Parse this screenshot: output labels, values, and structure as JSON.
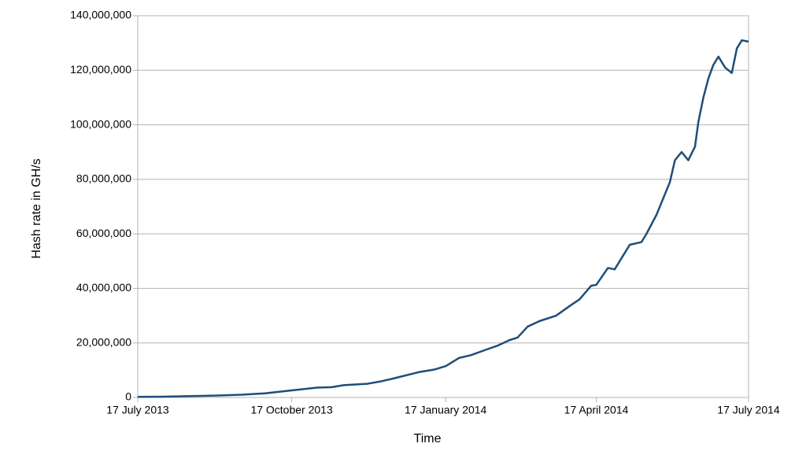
{
  "chart_data": {
    "type": "line",
    "x_label": "Time",
    "y_label": "Hash rate in GH/s",
    "xlim": [
      "2013-07-17",
      "2014-07-17"
    ],
    "xticks": [
      {
        "value": "2013-07-17",
        "label": "17 July 2013"
      },
      {
        "value": "2013-10-17",
        "label": "17 October 2013"
      },
      {
        "value": "2014-01-17",
        "label": "17 January 2014"
      },
      {
        "value": "2014-04-17",
        "label": "17 April 2014"
      },
      {
        "value": "2014-07-17",
        "label": "17 July 2014"
      }
    ],
    "ylim": [
      0,
      140000000
    ],
    "yticks": [
      0,
      {
        "value": 20000000,
        "label": "20,000,000"
      },
      {
        "value": 40000000,
        "label": "40,000,000"
      },
      {
        "value": 60000000,
        "label": "60,000,000"
      },
      {
        "value": 80000000,
        "label": "80,000,000"
      },
      {
        "value": 100000000,
        "label": "100,000,000"
      },
      {
        "value": 120000000,
        "label": "120,000,000"
      },
      {
        "value": 140000000,
        "label": "140,000,000"
      }
    ],
    "grid": true,
    "x": [
      "2013-07-17",
      "2013-08-01",
      "2013-08-17",
      "2013-09-01",
      "2013-09-17",
      "2013-10-01",
      "2013-10-17",
      "2013-11-01",
      "2013-11-10",
      "2013-11-17",
      "2013-12-01",
      "2013-12-10",
      "2013-12-17",
      "2014-01-01",
      "2014-01-10",
      "2014-01-17",
      "2014-01-25",
      "2014-02-01",
      "2014-02-10",
      "2014-02-17",
      "2014-02-24",
      "2014-03-01",
      "2014-03-07",
      "2014-03-14",
      "2014-03-24",
      "2014-04-01",
      "2014-04-07",
      "2014-04-14",
      "2014-04-17",
      "2014-04-24",
      "2014-04-28",
      "2014-05-01",
      "2014-05-07",
      "2014-05-14",
      "2014-05-17",
      "2014-05-23",
      "2014-05-27",
      "2014-05-31",
      "2014-06-03",
      "2014-06-07",
      "2014-06-11",
      "2014-06-15",
      "2014-06-17",
      "2014-06-20",
      "2014-06-23",
      "2014-06-26",
      "2014-06-29",
      "2014-07-03",
      "2014-07-07",
      "2014-07-10",
      "2014-07-13",
      "2014-07-17"
    ],
    "series": [
      {
        "color": "#1f4e79",
        "values": [
          200000,
          300000,
          500000,
          700000,
          1000000,
          1500000,
          2600000,
          3600000,
          3800000,
          4500000,
          5000000,
          6000000,
          7000000,
          9300000,
          10200000,
          11500000,
          14500000,
          15500000,
          17500000,
          19000000,
          21000000,
          22000000,
          26000000,
          28000000,
          30000000,
          33500000,
          36000000,
          41000000,
          41300000,
          47500000,
          47000000,
          50000000,
          56000000,
          57000000,
          60000000,
          67000000,
          73000000,
          79000000,
          87000000,
          90000000,
          87000000,
          92000000,
          101000000,
          110000000,
          117000000,
          122000000,
          125000000,
          121000000,
          119000000,
          128000000,
          131000000,
          130500000
        ]
      }
    ]
  }
}
